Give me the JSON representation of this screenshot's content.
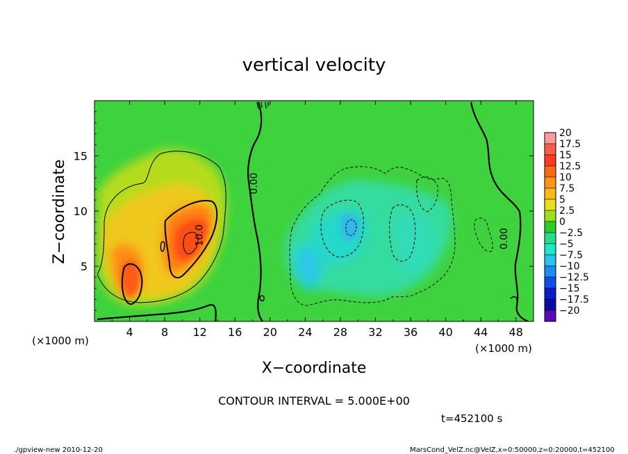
{
  "chart_data": {
    "type": "heatmap",
    "title": "vertical velocity",
    "xlabel": "X−coordinate",
    "ylabel": "Z−coordinate",
    "x_unit_left": "(×1000 m)",
    "x_unit_right": "(×1000 m)",
    "xlim": [
      0,
      50
    ],
    "ylim": [
      0,
      20
    ],
    "x_ticks": [
      4,
      8,
      12,
      16,
      20,
      24,
      28,
      32,
      36,
      40,
      44,
      48
    ],
    "y_ticks": [
      5,
      10,
      15
    ],
    "colorbar": {
      "levels": [
        "20",
        "17.5",
        "15",
        "12.5",
        "10",
        "7.5",
        "5",
        "2.5",
        "0",
        "−2.5",
        "−5",
        "−7.5",
        "−10",
        "−12.5",
        "−15",
        "−17.5",
        "−20"
      ],
      "colors": [
        "#ff9a9a",
        "#ff5a4a",
        "#ff3a1e",
        "#ff6a14",
        "#ff9418",
        "#ffb81c",
        "#e8e018",
        "#9ade1c",
        "#2cce2c",
        "#28dc8c",
        "#20e6c8",
        "#28c4f0",
        "#1e8cf0",
        "#1050e8",
        "#0a1ec8",
        "#0a0aa0",
        "#5a0ab4"
      ]
    },
    "contour_labels": [
      {
        "text": "0.00",
        "x": 18.5,
        "y": 12.5
      },
      {
        "text": "10.0",
        "x": 12.3,
        "y": 7.8
      },
      {
        "text": "0.00",
        "x": 47.0,
        "y": 7.5
      }
    ],
    "updraft_max_approx": 17.5,
    "downdraft_min_approx": -10
  },
  "annotations": {
    "contour_interval": "CONTOUR INTERVAL = 5.000E+00",
    "time": "t=452100 s",
    "footer_left": "./gpview-new   2010-12-20",
    "footer_right": "MarsCond_VelZ.nc@VelZ,x=0:50000,z=0:20000,t=452100"
  }
}
